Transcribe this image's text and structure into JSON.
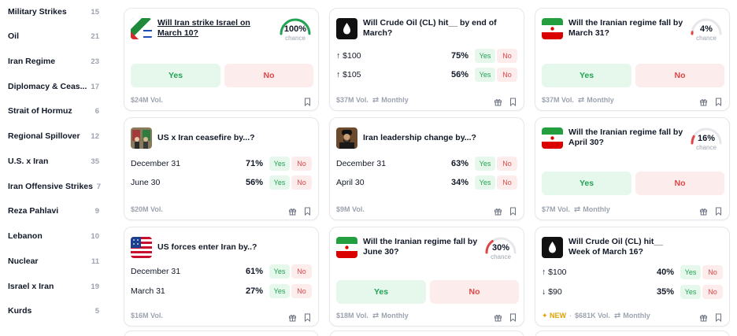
{
  "sidebar": {
    "items": [
      {
        "label": "Military Strikes",
        "count": "15"
      },
      {
        "label": "Oil",
        "count": "21"
      },
      {
        "label": "Iran Regime",
        "count": "23"
      },
      {
        "label": "Diplomacy & Ceas...",
        "count": "17"
      },
      {
        "label": "Strait of Hormuz",
        "count": "6"
      },
      {
        "label": "Regional Spillover",
        "count": "12"
      },
      {
        "label": "U.S. x Iran",
        "count": "35"
      },
      {
        "label": "Iran Offensive Strikes",
        "count": "7"
      },
      {
        "label": "Reza Pahlavi",
        "count": "9"
      },
      {
        "label": "Lebanon",
        "count": "10"
      },
      {
        "label": "Nuclear",
        "count": "11"
      },
      {
        "label": "Israel x Iran",
        "count": "19"
      },
      {
        "label": "Kurds",
        "count": "5"
      }
    ]
  },
  "cards": {
    "c1": {
      "title": "Will Iran strike Israel on March 10?",
      "pct": "100%",
      "chance": "chance",
      "pct_value": 100,
      "yes": "Yes",
      "no": "No",
      "vol": "$24M Vol.",
      "thumb": "iran-israel-flags",
      "accent": "#22a354"
    },
    "c2": {
      "title": "Will Crude Oil (CL) hit__ by end of March?",
      "thumb": "oil-drop-icon",
      "rows": [
        {
          "label": "↑ $100",
          "pct": "75%",
          "yes": "Yes",
          "no": "No"
        },
        {
          "label": "↑ $105",
          "pct": "56%",
          "yes": "Yes",
          "no": "No"
        }
      ],
      "vol": "$37M Vol.",
      "freq": "Monthly"
    },
    "c3": {
      "title": "Will the Iranian regime fall by March 31?",
      "pct": "4%",
      "chance": "chance",
      "pct_value": 4,
      "yes": "Yes",
      "no": "No",
      "vol": "$37M Vol.",
      "freq": "Monthly",
      "thumb": "iran-flag",
      "accent": "#e04646"
    },
    "c4": {
      "title": "US x Iran ceasefire by...?",
      "thumb": "us-iran-photo",
      "rows": [
        {
          "label": "December 31",
          "pct": "71%",
          "yes": "Yes",
          "no": "No"
        },
        {
          "label": "June 30",
          "pct": "56%",
          "yes": "Yes",
          "no": "No"
        }
      ],
      "vol": "$20M Vol."
    },
    "c5": {
      "title": "Iran leadership change by...?",
      "thumb": "leader-photo",
      "rows": [
        {
          "label": "December 31",
          "pct": "63%",
          "yes": "Yes",
          "no": "No"
        },
        {
          "label": "April 30",
          "pct": "34%",
          "yes": "Yes",
          "no": "No"
        }
      ],
      "vol": "$9M Vol."
    },
    "c6": {
      "title": "Will the Iranian regime fall by April 30?",
      "pct": "16%",
      "chance": "chance",
      "pct_value": 16,
      "yes": "Yes",
      "no": "No",
      "vol": "$7M Vol.",
      "freq": "Monthly",
      "thumb": "iran-flag",
      "accent": "#e04646"
    },
    "c7": {
      "title": "US forces enter Iran by..?",
      "thumb": "us-flag",
      "rows": [
        {
          "label": "December 31",
          "pct": "61%",
          "yes": "Yes",
          "no": "No"
        },
        {
          "label": "March 31",
          "pct": "27%",
          "yes": "Yes",
          "no": "No"
        }
      ],
      "vol": "$16M Vol."
    },
    "c8": {
      "title": "Will the Iranian regime fall by June 30?",
      "pct": "30%",
      "chance": "chance",
      "pct_value": 30,
      "yes": "Yes",
      "no": "No",
      "vol": "$18M Vol.",
      "freq": "Monthly",
      "thumb": "iran-flag",
      "accent": "#e04646"
    },
    "c9": {
      "title": "Will Crude Oil (CL) hit__ Week of March 16?",
      "thumb": "oil-drop-icon",
      "rows": [
        {
          "label": "↑ $100",
          "pct": "40%",
          "yes": "Yes",
          "no": "No"
        },
        {
          "label": "↓ $90",
          "pct": "35%",
          "yes": "Yes",
          "no": "No"
        }
      ],
      "new": "✦ NEW",
      "dot": "·",
      "vol": "$681K Vol.",
      "freq": "Monthly"
    }
  },
  "colors": {
    "yes": "#22a354",
    "no": "#e04646",
    "border": "#e5e7eb",
    "muted": "#9ca3af"
  },
  "icons": {
    "repeat": "⇄",
    "gift": "gift-icon",
    "bookmark": "bookmark-icon"
  }
}
